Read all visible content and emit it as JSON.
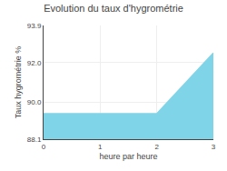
{
  "chart_data": {
    "type": "area",
    "title": "Evolution du taux d'hygrométrie",
    "x_label": "heure par heure",
    "y_label": "Taux hygrométrie %",
    "x": [
      0,
      2,
      2,
      3
    ],
    "values": [
      89.4,
      89.4,
      89.4,
      92.5
    ],
    "color": "#80d4e8",
    "xlim": [
      0,
      3
    ],
    "xticks": [
      0,
      1,
      2,
      3
    ],
    "ylim": [
      88.1,
      93.9
    ],
    "yticks": [
      88.1,
      {
        "value": 90.0,
        "label": "90.0"
      },
      {
        "value": 92.0,
        "label": "92.0"
      },
      93.9
    ],
    "grid": true
  }
}
